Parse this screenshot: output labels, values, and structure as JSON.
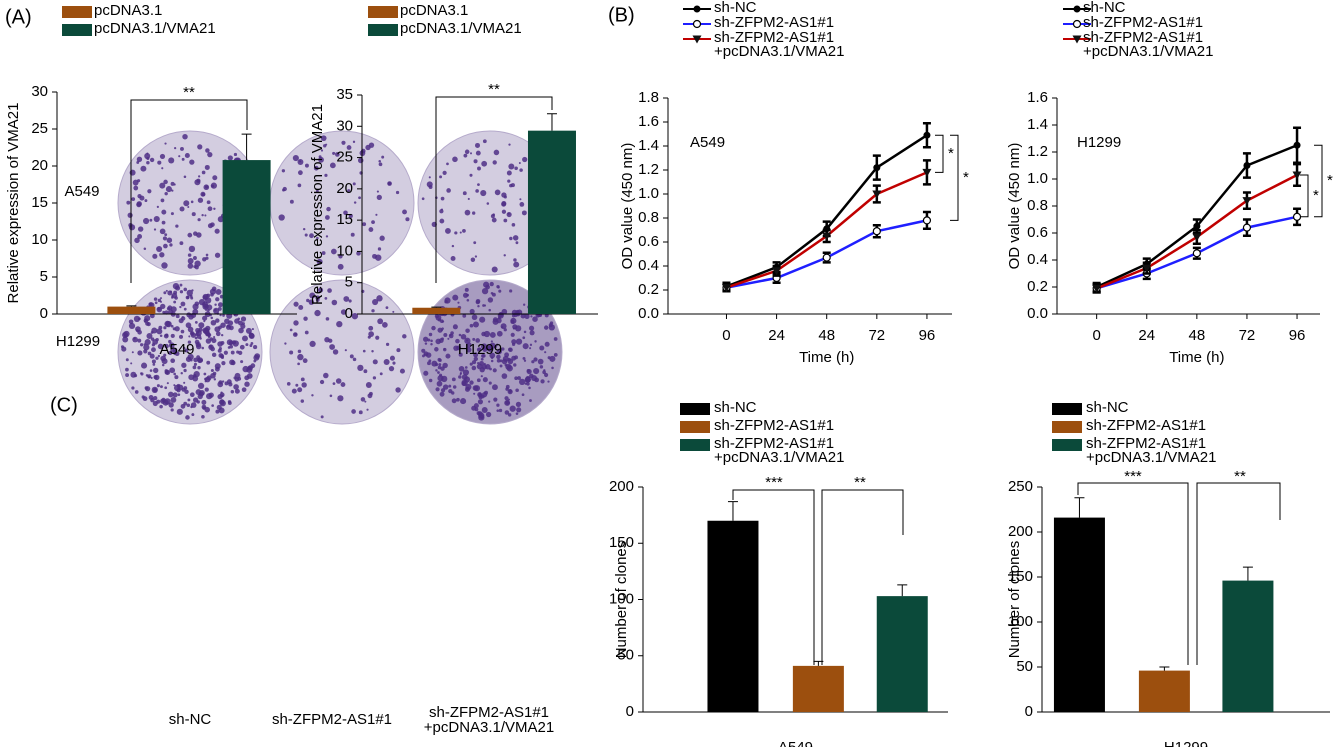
{
  "panel_labels": [
    "(A)",
    "(B)",
    "(C)"
  ],
  "colony_assay": {
    "rows": [
      "A549",
      "H1299"
    ],
    "columns": [
      "sh-NC",
      "sh-ZFPM2-AS1#1",
      "sh-ZFPM2-AS1#1\n+pcDNA3.1/VMA21"
    ]
  },
  "chart_data": [
    {
      "type": "bar",
      "ylabel": "Relative expression of VMA21",
      "categories": [
        "A549"
      ],
      "series": [
        {
          "name": "pcDNA3.1",
          "color": "#9c4f0e",
          "values": [
            1.0
          ],
          "errors": [
            0.1
          ]
        },
        {
          "name": "pcDNA3.1/VMA21",
          "color": "#0b4a3a",
          "values": [
            20.8
          ],
          "errors": [
            3.5
          ]
        }
      ],
      "ylim": [
        0,
        30
      ],
      "yticks": [
        0,
        5,
        10,
        15,
        20,
        25,
        30
      ],
      "annotations": [
        "**"
      ]
    },
    {
      "type": "bar",
      "ylabel": "Relative expression of VMA21",
      "categories": [
        "H1299"
      ],
      "series": [
        {
          "name": "pcDNA3.1",
          "color": "#9c4f0e",
          "values": [
            1.0
          ],
          "errors": [
            0.1
          ]
        },
        {
          "name": "pcDNA3.1/VMA21",
          "color": "#0b4a3a",
          "values": [
            29.3
          ],
          "errors": [
            2.7
          ]
        }
      ],
      "ylim": [
        0,
        35
      ],
      "yticks": [
        0,
        5,
        10,
        15,
        20,
        25,
        30,
        35
      ],
      "annotations": [
        "**"
      ]
    },
    {
      "type": "line",
      "xlabel": "Time (h)",
      "ylabel": "OD value (450 nm)",
      "x": [
        0,
        24,
        48,
        72,
        96
      ],
      "xlim": [
        -28,
        108
      ],
      "xticks": [
        0,
        24,
        48,
        72,
        96
      ],
      "series": [
        {
          "name": "sh-NC",
          "color": "#000000",
          "values": [
            0.23,
            0.39,
            0.71,
            1.22,
            1.49
          ],
          "errors": [
            0.03,
            0.04,
            0.06,
            0.1,
            0.1
          ]
        },
        {
          "name": "sh-ZFPM2-AS1#1",
          "color": "#1f1fff",
          "values": [
            0.22,
            0.3,
            0.47,
            0.69,
            0.78
          ],
          "errors": [
            0.03,
            0.04,
            0.04,
            0.05,
            0.07
          ]
        },
        {
          "name": "sh-ZFPM2-AS1#1\n+pcDNA3.1/VMA21",
          "color": "#c00000",
          "values": [
            0.22,
            0.36,
            0.65,
            1.0,
            1.18
          ],
          "errors": [
            0.03,
            0.04,
            0.05,
            0.07,
            0.1
          ]
        }
      ],
      "ylim": [
        0,
        1.8
      ],
      "yticks": [
        {
          "value": 0,
          "label": "0.0"
        },
        0.2,
        0.4,
        0.6,
        0.8,
        {
          "value": 1,
          "label": "1.0"
        },
        1.2,
        1.4,
        1.6,
        1.8
      ],
      "annotations": [
        "A549",
        "*",
        "*"
      ]
    },
    {
      "type": "line",
      "xlabel": "Time (h)",
      "ylabel": "OD value (450 nm)",
      "x": [
        0,
        24,
        48,
        72,
        96
      ],
      "xlim": [
        -19,
        107
      ],
      "xticks": [
        0,
        24,
        48,
        72,
        96
      ],
      "series": [
        {
          "name": "sh-NC",
          "color": "#000000",
          "values": [
            0.2,
            0.37,
            0.65,
            1.1,
            1.25
          ],
          "errors": [
            0.03,
            0.04,
            0.05,
            0.09,
            0.13
          ]
        },
        {
          "name": "sh-ZFPM2-AS1#1",
          "color": "#1f1fff",
          "values": [
            0.19,
            0.3,
            0.45,
            0.64,
            0.72
          ],
          "errors": [
            0.03,
            0.04,
            0.04,
            0.06,
            0.06
          ]
        },
        {
          "name": "sh-ZFPM2-AS1#1\n+pcDNA3.1/VMA21",
          "color": "#c00000",
          "values": [
            0.19,
            0.34,
            0.57,
            0.84,
            1.03
          ],
          "errors": [
            0.03,
            0.04,
            0.05,
            0.06,
            0.08
          ]
        }
      ],
      "ylim": [
        0,
        1.6
      ],
      "yticks": [
        {
          "value": 0,
          "label": "0.0"
        },
        0.2,
        0.4,
        0.6,
        0.8,
        {
          "value": 1,
          "label": "1.0"
        },
        1.2,
        1.4,
        1.6
      ],
      "annotations": [
        "H1299",
        "*",
        "*"
      ]
    },
    {
      "type": "bar",
      "ylabel": "Number of clones",
      "categories": [
        "A549"
      ],
      "series": [
        {
          "name": "sh-NC",
          "color": "#000000",
          "values": [
            170
          ],
          "errors": [
            17
          ]
        },
        {
          "name": "sh-ZFPM2-AS1#1",
          "color": "#9c4f0e",
          "values": [
            41
          ],
          "errors": [
            4
          ]
        },
        {
          "name": "sh-ZFPM2-AS1#1\n+pcDNA3.1/VMA21",
          "color": "#0b4a3a",
          "values": [
            103
          ],
          "errors": [
            10
          ]
        }
      ],
      "ylim": [
        0,
        200
      ],
      "yticks": [
        0,
        50,
        100,
        150,
        200
      ],
      "annotations": [
        "***",
        "**"
      ]
    },
    {
      "type": "bar",
      "ylabel": "Number of clones",
      "categories": [
        "H1299"
      ],
      "series": [
        {
          "name": "sh-NC",
          "color": "#000000",
          "values": [
            216
          ],
          "errors": [
            22
          ]
        },
        {
          "name": "sh-ZFPM2-AS1#1",
          "color": "#9c4f0e",
          "values": [
            46
          ],
          "errors": [
            4
          ]
        },
        {
          "name": "sh-ZFPM2-AS1#1\n+pcDNA3.1/VMA21",
          "color": "#0b4a3a",
          "values": [
            146
          ],
          "errors": [
            15
          ]
        }
      ],
      "ylim": [
        0,
        250
      ],
      "yticks": [
        0,
        50,
        100,
        150,
        200,
        250
      ],
      "annotations": [
        "***",
        "**"
      ]
    }
  ]
}
